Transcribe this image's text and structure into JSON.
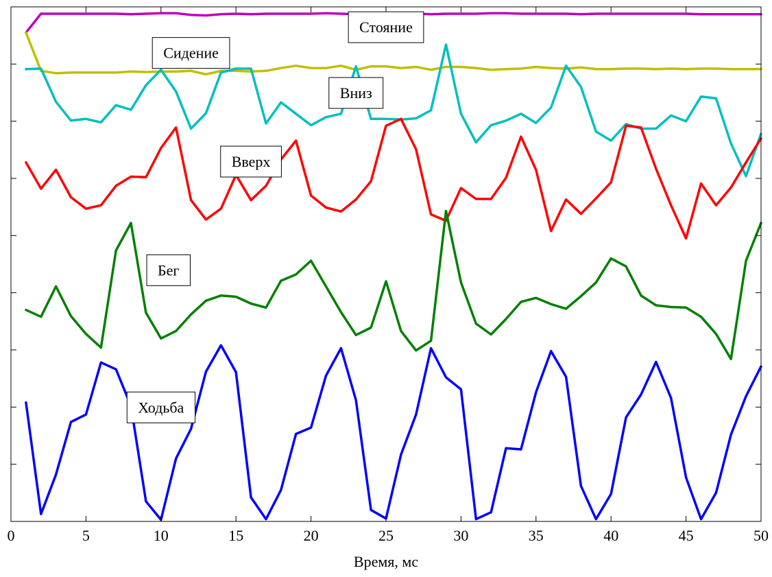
{
  "chart_data": {
    "type": "line",
    "title": "",
    "xlabel": "Время, мс",
    "ylabel": "",
    "xlim": [
      0,
      50
    ],
    "ylim": [
      0,
      9
    ],
    "xticks": [
      0,
      5,
      10,
      15,
      20,
      25,
      30,
      35,
      40,
      45,
      50
    ],
    "yticks": [
      1,
      2,
      3,
      4,
      5,
      6,
      7,
      8
    ],
    "grid": false,
    "x": [
      1,
      2,
      3,
      4,
      5,
      6,
      7,
      8,
      9,
      10,
      11,
      12,
      13,
      14,
      15,
      16,
      17,
      18,
      19,
      20,
      21,
      22,
      23,
      24,
      25,
      26,
      27,
      28,
      29,
      30,
      31,
      32,
      33,
      34,
      35,
      36,
      37,
      38,
      39,
      40,
      41,
      42,
      43,
      44,
      45,
      46,
      47,
      48,
      49,
      50
    ],
    "series": [
      {
        "name": "Стояние",
        "color": "#bf00bf",
        "label_anchor": [
          25,
          8.65
        ],
        "values": [
          8.55,
          8.88,
          8.88,
          8.88,
          8.88,
          8.88,
          8.88,
          8.87,
          8.88,
          8.89,
          8.89,
          8.86,
          8.85,
          8.87,
          8.88,
          8.87,
          8.88,
          8.88,
          8.88,
          8.88,
          8.89,
          8.88,
          8.87,
          8.87,
          8.87,
          8.88,
          8.88,
          8.87,
          8.88,
          8.88,
          8.88,
          8.89,
          8.89,
          8.88,
          8.88,
          8.88,
          8.88,
          8.87,
          8.88,
          8.88,
          8.88,
          8.88,
          8.88,
          8.88,
          8.88,
          8.87,
          8.87,
          8.87,
          8.87,
          8.87
        ]
      },
      {
        "name": "Сидение",
        "color": "#bfbf00",
        "label_anchor": [
          12,
          8.2
        ],
        "values": [
          8.55,
          7.88,
          7.84,
          7.85,
          7.85,
          7.85,
          7.85,
          7.87,
          7.86,
          7.87,
          7.87,
          7.88,
          7.82,
          7.88,
          7.88,
          7.87,
          7.88,
          7.93,
          7.97,
          7.93,
          7.93,
          7.97,
          7.9,
          7.96,
          7.96,
          7.93,
          7.95,
          7.9,
          7.95,
          7.95,
          7.93,
          7.9,
          7.91,
          7.92,
          7.95,
          7.93,
          7.92,
          7.94,
          7.91,
          7.91,
          7.92,
          7.92,
          7.91,
          7.92,
          7.91,
          7.92,
          7.92,
          7.91,
          7.91,
          7.91
        ]
      },
      {
        "name": "Вниз",
        "color": "#00bfbf",
        "label_anchor": [
          23,
          7.5
        ],
        "values": [
          7.91,
          7.92,
          7.34,
          7.01,
          7.04,
          6.98,
          7.28,
          7.2,
          7.63,
          7.9,
          7.52,
          6.87,
          7.14,
          7.85,
          7.92,
          7.92,
          6.96,
          7.33,
          7.13,
          6.93,
          7.07,
          7.13,
          7.96,
          7.04,
          7.04,
          7.03,
          7.05,
          7.19,
          8.34,
          7.13,
          6.63,
          6.93,
          7.01,
          7.13,
          6.97,
          7.24,
          7.97,
          7.6,
          6.82,
          6.66,
          6.95,
          6.87,
          6.87,
          7.1,
          7.0,
          7.43,
          7.4,
          6.61,
          6.04,
          6.78
        ]
      },
      {
        "name": "Вверх",
        "color": "#ff0000",
        "label_anchor": [
          16,
          6.3
        ],
        "values": [
          6.28,
          5.82,
          6.15,
          5.67,
          5.47,
          5.53,
          5.87,
          6.03,
          6.02,
          6.53,
          6.89,
          5.62,
          5.28,
          5.47,
          6.06,
          5.62,
          5.87,
          6.33,
          6.66,
          5.7,
          5.49,
          5.42,
          5.63,
          5.95,
          6.92,
          7.04,
          6.51,
          5.37,
          5.26,
          5.83,
          5.64,
          5.64,
          6.01,
          6.73,
          6.15,
          5.08,
          5.63,
          5.38,
          5.65,
          5.93,
          6.92,
          6.89,
          6.17,
          5.53,
          4.95,
          5.91,
          5.53,
          5.84,
          6.28,
          6.7
        ]
      },
      {
        "name": "Бег",
        "color": "#008000",
        "label_anchor": [
          10.5,
          4.4
        ],
        "values": [
          3.7,
          3.58,
          4.11,
          3.59,
          3.28,
          3.04,
          4.74,
          5.22,
          3.65,
          3.2,
          3.33,
          3.62,
          3.86,
          3.95,
          3.93,
          3.81,
          3.74,
          4.21,
          4.32,
          4.56,
          4.11,
          3.66,
          3.26,
          3.39,
          4.2,
          3.33,
          2.99,
          3.16,
          5.43,
          4.18,
          3.46,
          3.27,
          3.54,
          3.84,
          3.91,
          3.8,
          3.72,
          3.94,
          4.18,
          4.6,
          4.46,
          3.95,
          3.78,
          3.75,
          3.74,
          3.58,
          3.28,
          2.84,
          4.56,
          5.22
        ]
      },
      {
        "name": "Ходьба",
        "color": "#0000ff",
        "label_anchor": [
          10,
          2.0
        ],
        "values": [
          2.08,
          0.13,
          0.82,
          1.74,
          1.87,
          2.78,
          2.66,
          2.02,
          0.35,
          0.03,
          1.1,
          1.62,
          2.62,
          3.08,
          2.61,
          0.42,
          0.04,
          0.55,
          1.53,
          1.64,
          2.55,
          3.03,
          2.12,
          0.2,
          0.05,
          1.17,
          1.87,
          3.03,
          2.52,
          2.31,
          0.04,
          0.16,
          1.28,
          1.26,
          2.26,
          2.98,
          2.53,
          0.62,
          0.04,
          0.48,
          1.82,
          2.22,
          2.79,
          2.16,
          0.77,
          0.04,
          0.5,
          1.52,
          2.19,
          2.71
        ]
      }
    ]
  }
}
